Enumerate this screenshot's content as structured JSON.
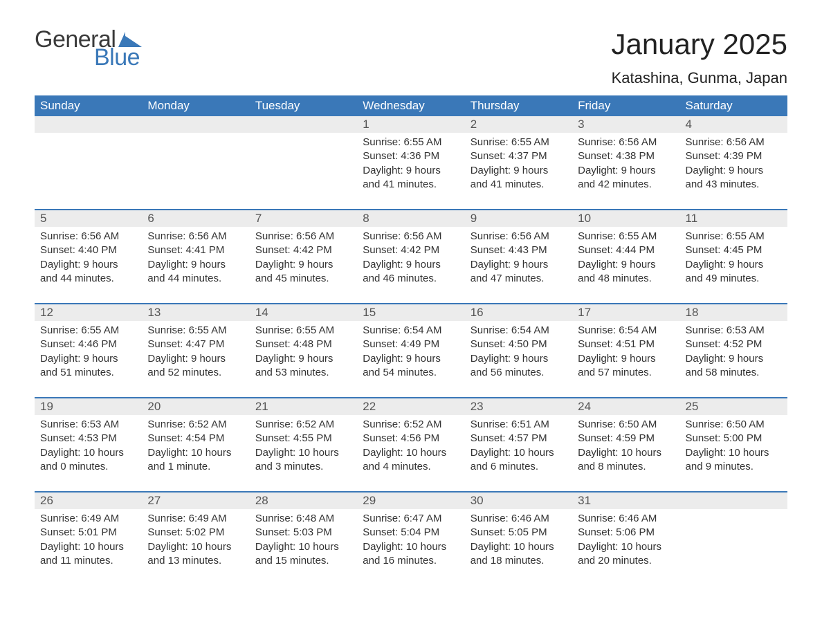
{
  "brand": {
    "word1": "General",
    "word2": "Blue",
    "word1_color": "#3a3a3a",
    "word2_color": "#3a78b8",
    "shape_color": "#3a78b8"
  },
  "title": "January 2025",
  "location": "Katashina, Gunma, Japan",
  "colors": {
    "header_bg": "#3a78b8",
    "header_text": "#ffffff",
    "daynum_bg": "#ececec",
    "week_border": "#3a78b8",
    "body_text": "#333333",
    "page_bg": "#ffffff"
  },
  "fonts": {
    "title_size_pt": 32,
    "location_size_pt": 17,
    "dayhead_size_pt": 13,
    "cell_size_pt": 11
  },
  "day_names": [
    "Sunday",
    "Monday",
    "Tuesday",
    "Wednesday",
    "Thursday",
    "Friday",
    "Saturday"
  ],
  "weeks": [
    [
      {
        "num": "",
        "sunrise": "",
        "sunset": "",
        "daylight": ""
      },
      {
        "num": "",
        "sunrise": "",
        "sunset": "",
        "daylight": ""
      },
      {
        "num": "",
        "sunrise": "",
        "sunset": "",
        "daylight": ""
      },
      {
        "num": "1",
        "sunrise": "Sunrise: 6:55 AM",
        "sunset": "Sunset: 4:36 PM",
        "daylight": "Daylight: 9 hours and 41 minutes."
      },
      {
        "num": "2",
        "sunrise": "Sunrise: 6:55 AM",
        "sunset": "Sunset: 4:37 PM",
        "daylight": "Daylight: 9 hours and 41 minutes."
      },
      {
        "num": "3",
        "sunrise": "Sunrise: 6:56 AM",
        "sunset": "Sunset: 4:38 PM",
        "daylight": "Daylight: 9 hours and 42 minutes."
      },
      {
        "num": "4",
        "sunrise": "Sunrise: 6:56 AM",
        "sunset": "Sunset: 4:39 PM",
        "daylight": "Daylight: 9 hours and 43 minutes."
      }
    ],
    [
      {
        "num": "5",
        "sunrise": "Sunrise: 6:56 AM",
        "sunset": "Sunset: 4:40 PM",
        "daylight": "Daylight: 9 hours and 44 minutes."
      },
      {
        "num": "6",
        "sunrise": "Sunrise: 6:56 AM",
        "sunset": "Sunset: 4:41 PM",
        "daylight": "Daylight: 9 hours and 44 minutes."
      },
      {
        "num": "7",
        "sunrise": "Sunrise: 6:56 AM",
        "sunset": "Sunset: 4:42 PM",
        "daylight": "Daylight: 9 hours and 45 minutes."
      },
      {
        "num": "8",
        "sunrise": "Sunrise: 6:56 AM",
        "sunset": "Sunset: 4:42 PM",
        "daylight": "Daylight: 9 hours and 46 minutes."
      },
      {
        "num": "9",
        "sunrise": "Sunrise: 6:56 AM",
        "sunset": "Sunset: 4:43 PM",
        "daylight": "Daylight: 9 hours and 47 minutes."
      },
      {
        "num": "10",
        "sunrise": "Sunrise: 6:55 AM",
        "sunset": "Sunset: 4:44 PM",
        "daylight": "Daylight: 9 hours and 48 minutes."
      },
      {
        "num": "11",
        "sunrise": "Sunrise: 6:55 AM",
        "sunset": "Sunset: 4:45 PM",
        "daylight": "Daylight: 9 hours and 49 minutes."
      }
    ],
    [
      {
        "num": "12",
        "sunrise": "Sunrise: 6:55 AM",
        "sunset": "Sunset: 4:46 PM",
        "daylight": "Daylight: 9 hours and 51 minutes."
      },
      {
        "num": "13",
        "sunrise": "Sunrise: 6:55 AM",
        "sunset": "Sunset: 4:47 PM",
        "daylight": "Daylight: 9 hours and 52 minutes."
      },
      {
        "num": "14",
        "sunrise": "Sunrise: 6:55 AM",
        "sunset": "Sunset: 4:48 PM",
        "daylight": "Daylight: 9 hours and 53 minutes."
      },
      {
        "num": "15",
        "sunrise": "Sunrise: 6:54 AM",
        "sunset": "Sunset: 4:49 PM",
        "daylight": "Daylight: 9 hours and 54 minutes."
      },
      {
        "num": "16",
        "sunrise": "Sunrise: 6:54 AM",
        "sunset": "Sunset: 4:50 PM",
        "daylight": "Daylight: 9 hours and 56 minutes."
      },
      {
        "num": "17",
        "sunrise": "Sunrise: 6:54 AM",
        "sunset": "Sunset: 4:51 PM",
        "daylight": "Daylight: 9 hours and 57 minutes."
      },
      {
        "num": "18",
        "sunrise": "Sunrise: 6:53 AM",
        "sunset": "Sunset: 4:52 PM",
        "daylight": "Daylight: 9 hours and 58 minutes."
      }
    ],
    [
      {
        "num": "19",
        "sunrise": "Sunrise: 6:53 AM",
        "sunset": "Sunset: 4:53 PM",
        "daylight": "Daylight: 10 hours and 0 minutes."
      },
      {
        "num": "20",
        "sunrise": "Sunrise: 6:52 AM",
        "sunset": "Sunset: 4:54 PM",
        "daylight": "Daylight: 10 hours and 1 minute."
      },
      {
        "num": "21",
        "sunrise": "Sunrise: 6:52 AM",
        "sunset": "Sunset: 4:55 PM",
        "daylight": "Daylight: 10 hours and 3 minutes."
      },
      {
        "num": "22",
        "sunrise": "Sunrise: 6:52 AM",
        "sunset": "Sunset: 4:56 PM",
        "daylight": "Daylight: 10 hours and 4 minutes."
      },
      {
        "num": "23",
        "sunrise": "Sunrise: 6:51 AM",
        "sunset": "Sunset: 4:57 PM",
        "daylight": "Daylight: 10 hours and 6 minutes."
      },
      {
        "num": "24",
        "sunrise": "Sunrise: 6:50 AM",
        "sunset": "Sunset: 4:59 PM",
        "daylight": "Daylight: 10 hours and 8 minutes."
      },
      {
        "num": "25",
        "sunrise": "Sunrise: 6:50 AM",
        "sunset": "Sunset: 5:00 PM",
        "daylight": "Daylight: 10 hours and 9 minutes."
      }
    ],
    [
      {
        "num": "26",
        "sunrise": "Sunrise: 6:49 AM",
        "sunset": "Sunset: 5:01 PM",
        "daylight": "Daylight: 10 hours and 11 minutes."
      },
      {
        "num": "27",
        "sunrise": "Sunrise: 6:49 AM",
        "sunset": "Sunset: 5:02 PM",
        "daylight": "Daylight: 10 hours and 13 minutes."
      },
      {
        "num": "28",
        "sunrise": "Sunrise: 6:48 AM",
        "sunset": "Sunset: 5:03 PM",
        "daylight": "Daylight: 10 hours and 15 minutes."
      },
      {
        "num": "29",
        "sunrise": "Sunrise: 6:47 AM",
        "sunset": "Sunset: 5:04 PM",
        "daylight": "Daylight: 10 hours and 16 minutes."
      },
      {
        "num": "30",
        "sunrise": "Sunrise: 6:46 AM",
        "sunset": "Sunset: 5:05 PM",
        "daylight": "Daylight: 10 hours and 18 minutes."
      },
      {
        "num": "31",
        "sunrise": "Sunrise: 6:46 AM",
        "sunset": "Sunset: 5:06 PM",
        "daylight": "Daylight: 10 hours and 20 minutes."
      },
      {
        "num": "",
        "sunrise": "",
        "sunset": "",
        "daylight": ""
      }
    ]
  ]
}
